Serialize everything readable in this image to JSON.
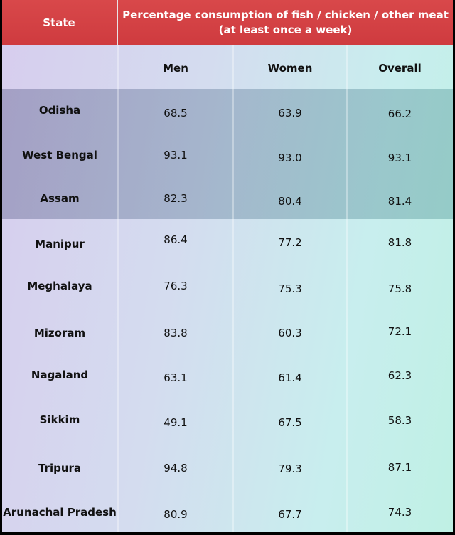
{
  "table": {
    "state_header": "State",
    "title_line1": "Percentage consumption of fish / chicken / other meat",
    "title_line2": "(at least once a week)",
    "columns": [
      "Men",
      "Women",
      "Overall"
    ],
    "rows": [
      {
        "state": "Odisha",
        "men": "68.5",
        "women": "63.9",
        "overall": "66.2"
      },
      {
        "state": "West Bengal",
        "men": "93.1",
        "women": "93.0",
        "overall": "93.1"
      },
      {
        "state": "Assam",
        "men": "82.3",
        "women": "80.4",
        "overall": "81.4"
      },
      {
        "state": "Manipur",
        "men": "86.4",
        "women": "77.2",
        "overall": "81.8"
      },
      {
        "state": "Meghalaya",
        "men": "76.3",
        "women": "75.3",
        "overall": "75.8"
      },
      {
        "state": "Mizoram",
        "men": "83.8",
        "women": "60.3",
        "overall": "72.1"
      },
      {
        "state": "Nagaland",
        "men": "63.1",
        "women": "61.4",
        "overall": "62.3"
      },
      {
        "state": "Sikkim",
        "men": "49.1",
        "women": "67.5",
        "overall": "58.3"
      },
      {
        "state": "Tripura",
        "men": "94.8",
        "women": "79.3",
        "overall": "87.1"
      },
      {
        "state": "Arunachal Pradesh",
        "men": "80.9",
        "women": "67.7",
        "overall": "74.3"
      }
    ]
  },
  "colors": {
    "header_red": "#d8484a",
    "highlight_band": "#5f6f96"
  }
}
